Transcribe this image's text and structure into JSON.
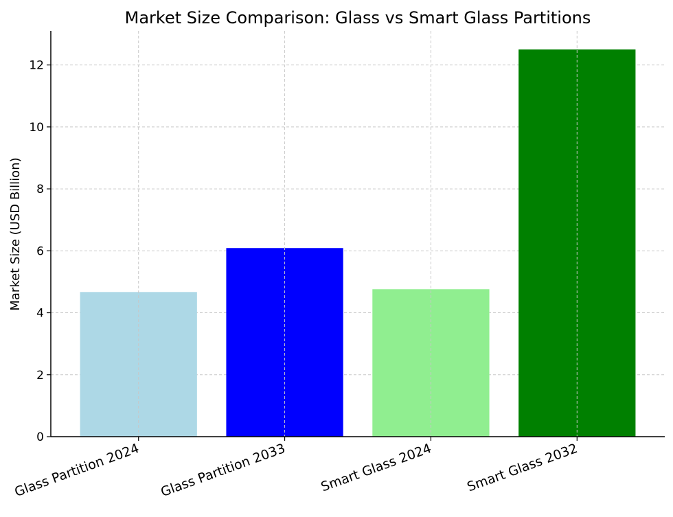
{
  "chart_data": {
    "type": "bar",
    "title": "Market Size Comparison: Glass vs Smart Glass Partitions",
    "xlabel": "",
    "ylabel": "Market Size (USD Billion)",
    "categories": [
      "Glass Partition 2024",
      "Glass Partition 2033",
      "Smart Glass 2024",
      "Smart Glass 2032"
    ],
    "values": [
      4.67,
      6.09,
      4.76,
      12.5
    ],
    "colors": [
      "#add8e6",
      "#0000ff",
      "#90ee90",
      "#008000"
    ],
    "ylim": [
      0,
      13.1
    ],
    "yticks": [
      0,
      2,
      4,
      6,
      8,
      10,
      12
    ],
    "grid": true,
    "xtick_rotation": 20
  }
}
